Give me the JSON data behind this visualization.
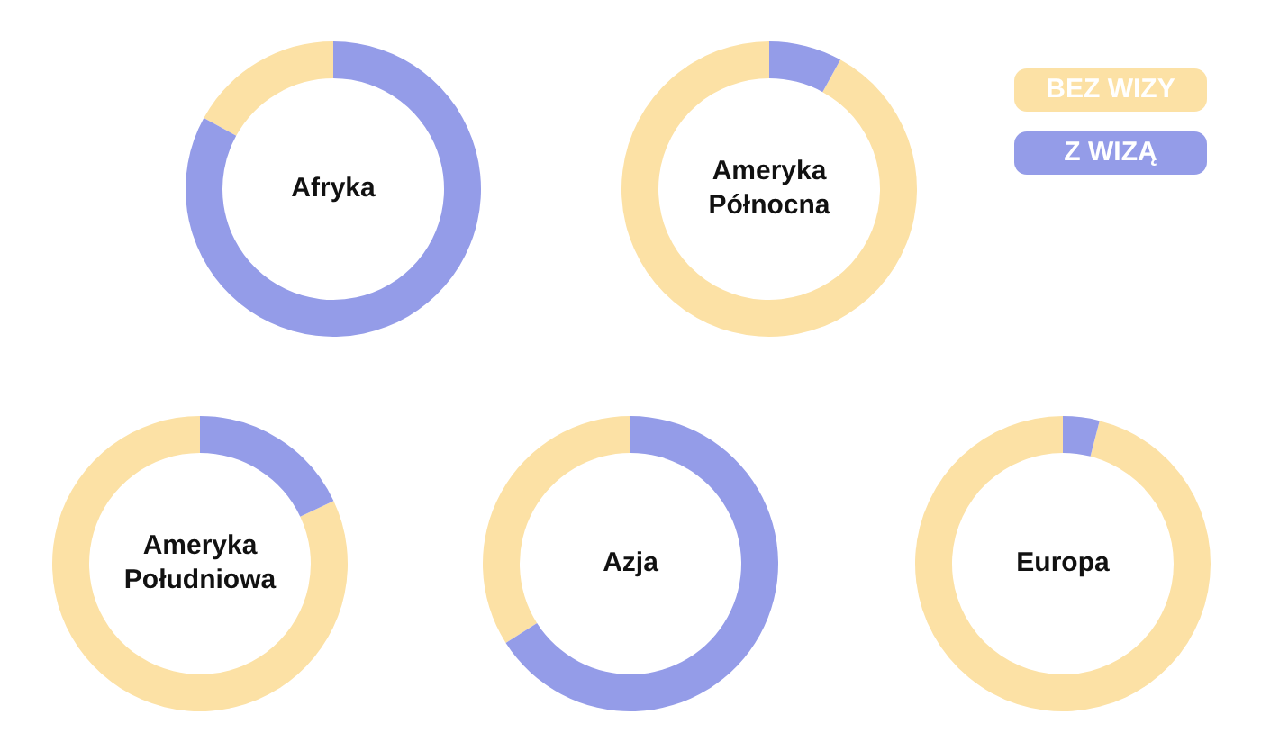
{
  "chart_data": [
    {
      "type": "donut",
      "title": "Afryka",
      "categories": [
        "BEZ WIZY",
        "Z WIZĄ"
      ],
      "values": [
        17,
        83
      ],
      "colors": [
        "#fce1a5",
        "#949ce8"
      ],
      "legend": "right"
    },
    {
      "type": "donut",
      "title": "Ameryka Północna",
      "categories": [
        null,
        null
      ],
      "values": [
        92,
        8
      ],
      "colors": [
        "#fce1a5",
        "#949ce8"
      ]
    },
    {
      "type": "donut",
      "title": "Ameryka Południowa",
      "categories": [
        null,
        null
      ],
      "values": [
        82,
        18
      ],
      "colors": [
        "#fce1a5",
        "#949ce8"
      ]
    },
    {
      "type": "donut",
      "title": "Azja",
      "categories": [
        null,
        null
      ],
      "values": [
        34,
        66
      ],
      "colors": [
        "#fce1a5",
        "#949ce8"
      ]
    },
    {
      "type": "donut",
      "title": "Europa",
      "categories": [
        null,
        null
      ],
      "values": [
        96,
        4
      ],
      "colors": [
        "#fce1a5",
        "#949ce8"
      ]
    }
  ]
}
